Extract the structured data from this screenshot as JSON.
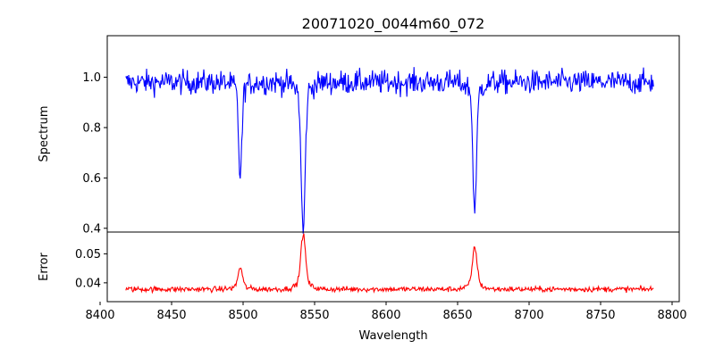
{
  "chart_data": [
    {
      "type": "line",
      "title": "20071020_0044m60_072",
      "xlabel": "",
      "ylabel": "Spectrum",
      "xlim": [
        8405,
        8805
      ],
      "ylim": [
        0.385,
        1.165
      ],
      "xticks": [
        8400,
        8450,
        8500,
        8550,
        8600,
        8650,
        8700,
        8750,
        8800
      ],
      "yticks": [
        0.4,
        0.6,
        0.8,
        1.0
      ],
      "ytick_labels": [
        "0.4",
        "0.6",
        "0.8",
        "1.0"
      ],
      "grid": false,
      "legend": "none",
      "series": [
        {
          "color": "#0000ff",
          "x_range": [
            8418,
            8787
          ],
          "continuum": 0.98,
          "noise": 0.045,
          "absorption_lines": [
            {
              "center": 8498.0,
              "depth": 0.35,
              "width": 1.2
            },
            {
              "center": 8542.0,
              "depth": 0.56,
              "width": 1.4
            },
            {
              "center": 8662.0,
              "depth": 0.48,
              "width": 1.3
            }
          ]
        }
      ]
    },
    {
      "type": "line",
      "title": "",
      "xlabel": "Wavelength",
      "ylabel": "Error",
      "xlim": [
        8405,
        8805
      ],
      "ylim": [
        0.0335,
        0.0575
      ],
      "xticks": [
        8400,
        8450,
        8500,
        8550,
        8600,
        8650,
        8700,
        8750,
        8800
      ],
      "xtick_labels": [
        "8400",
        "8450",
        "8500",
        "8550",
        "8600",
        "8650",
        "8700",
        "8750",
        "8800"
      ],
      "yticks": [
        0.04,
        0.05
      ],
      "ytick_labels": [
        "0.04",
        "0.05"
      ],
      "grid": false,
      "legend": "none",
      "series": [
        {
          "color": "#ff0000",
          "x_range": [
            8418,
            8787
          ],
          "baseline": 0.0378,
          "noise": 0.0009,
          "emission_peaks": [
            {
              "center": 8498.0,
              "height": 0.0065,
              "width": 1.5
            },
            {
              "center": 8542.0,
              "height": 0.0165,
              "width": 1.6
            },
            {
              "center": 8662.0,
              "height": 0.0125,
              "width": 1.6
            }
          ]
        }
      ]
    }
  ]
}
